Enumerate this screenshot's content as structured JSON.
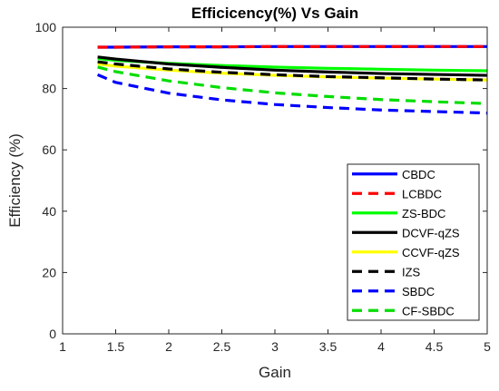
{
  "chart_data": {
    "type": "line",
    "title": "Efficicency(%) Vs Gain",
    "xlabel": "Gain",
    "ylabel": "Efficiency (%)",
    "xlim": [
      1,
      5
    ],
    "ylim": [
      0,
      100
    ],
    "xticks": [
      1,
      1.5,
      2,
      2.5,
      3,
      3.5,
      4,
      4.5,
      5
    ],
    "xtick_labels": [
      "1",
      "1.5",
      "2",
      "2.5",
      "3",
      "3.5",
      "4",
      "4.5",
      "5"
    ],
    "yticks": [
      0,
      20,
      40,
      60,
      80,
      100
    ],
    "ytick_labels": [
      "0",
      "20",
      "40",
      "60",
      "80",
      "100"
    ],
    "grid": false,
    "legend_position": "bottom-right",
    "series": [
      {
        "name": "CBDC",
        "color": "#0000ff",
        "dash": "solid",
        "x": [
          1.33,
          1.5,
          2,
          2.5,
          3,
          3.5,
          4,
          4.5,
          5
        ],
        "y": [
          93.5,
          93.5,
          93.6,
          93.6,
          93.7,
          93.7,
          93.7,
          93.7,
          93.7
        ]
      },
      {
        "name": "LCBDC",
        "color": "#ff0000",
        "dash": "dashed",
        "x": [
          1.33,
          1.5,
          2,
          2.5,
          3,
          3.5,
          4,
          4.5,
          5
        ],
        "y": [
          93.5,
          93.5,
          93.6,
          93.6,
          93.7,
          93.7,
          93.7,
          93.7,
          93.7
        ]
      },
      {
        "name": "ZS-BDC",
        "color": "#00ff00",
        "dash": "solid",
        "x": [
          1.33,
          1.5,
          2,
          2.5,
          3,
          3.5,
          4,
          4.5,
          5
        ],
        "y": [
          89.8,
          89.2,
          88.2,
          87.5,
          87.0,
          86.6,
          86.3,
          86.0,
          85.8
        ]
      },
      {
        "name": "DCVF-qZS",
        "color": "#000000",
        "dash": "solid",
        "x": [
          1.33,
          1.5,
          2,
          2.5,
          3,
          3.5,
          4,
          4.5,
          5
        ],
        "y": [
          90.3,
          89.6,
          88.0,
          86.9,
          86.0,
          85.4,
          84.9,
          84.6,
          84.3
        ]
      },
      {
        "name": "CCVF-qZS",
        "color": "#ffff00",
        "dash": "solid",
        "x": [
          1.33,
          1.5,
          2,
          2.5,
          3,
          3.5,
          4,
          4.5,
          5
        ],
        "y": [
          88.0,
          87.3,
          86.0,
          85.0,
          84.3,
          83.8,
          83.4,
          83.1,
          82.8
        ]
      },
      {
        "name": "IZS",
        "color": "#000000",
        "dash": "dashed",
        "x": [
          1.33,
          1.5,
          2,
          2.5,
          3,
          3.5,
          4,
          4.5,
          5
        ],
        "y": [
          88.7,
          88.0,
          86.4,
          85.3,
          84.5,
          83.9,
          83.5,
          83.1,
          82.8
        ]
      },
      {
        "name": "SBDC",
        "color": "#0000ff",
        "dash": "dashed",
        "x": [
          1.33,
          1.5,
          2,
          2.5,
          3,
          3.5,
          4,
          4.5,
          5
        ],
        "y": [
          84.5,
          82.0,
          78.5,
          76.3,
          74.8,
          73.8,
          73.0,
          72.5,
          72.0
        ]
      },
      {
        "name": "CF-SBDC",
        "color": "#00dd00",
        "dash": "dashed",
        "x": [
          1.33,
          1.5,
          2,
          2.5,
          3,
          3.5,
          4,
          4.5,
          5
        ],
        "y": [
          87.0,
          85.5,
          82.5,
          80.3,
          78.6,
          77.4,
          76.4,
          75.7,
          75.1
        ]
      }
    ]
  }
}
